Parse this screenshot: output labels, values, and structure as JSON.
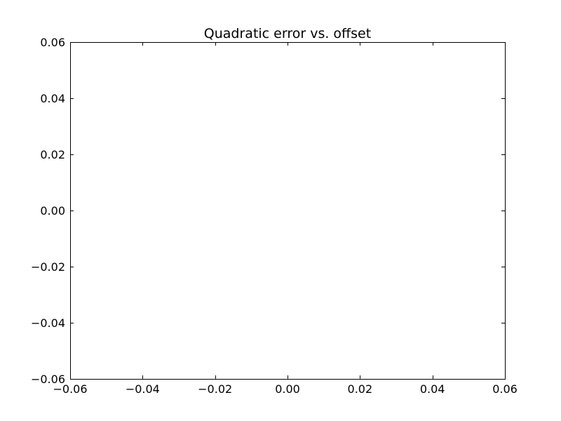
{
  "chart_data": {
    "type": "line",
    "title": "Quadratic error vs. offset",
    "xlabel": "",
    "ylabel": "",
    "xlim": [
      -0.06,
      0.06
    ],
    "ylim": [
      -0.06,
      0.06
    ],
    "x_ticks": [
      -0.06,
      -0.04,
      -0.02,
      0.0,
      0.02,
      0.04,
      0.06
    ],
    "x_tick_labels": [
      "−0.06",
      "−0.04",
      "−0.02",
      "0.00",
      "0.02",
      "0.04",
      "0.06"
    ],
    "y_ticks": [
      -0.06,
      -0.04,
      -0.02,
      0.0,
      0.02,
      0.04,
      0.06
    ],
    "y_tick_labels": [
      "−0.06",
      "−0.04",
      "−0.02",
      "0.00",
      "0.02",
      "0.04",
      "0.06"
    ],
    "series": [],
    "grid": false,
    "colors": {
      "axes": "#000000",
      "background": "#ffffff"
    }
  }
}
